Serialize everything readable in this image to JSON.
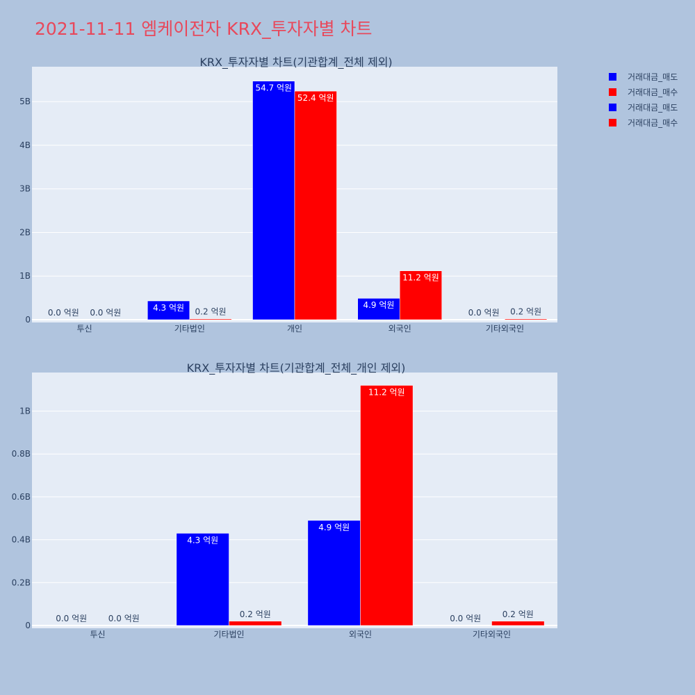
{
  "title": "2021-11-11 엠케이전자 KRX_투자자별 차트",
  "chart_data": [
    {
      "type": "bar",
      "title": "KRX_투자자별 차트(기관합계_전체 제외)",
      "categories": [
        "투신",
        "기타법인",
        "개인",
        "외국인",
        "기타외국인"
      ],
      "series": [
        {
          "name": "거래대금_매도",
          "color": "#0000ff",
          "values": [
            0,
            430000000,
            5470000000,
            490000000,
            0
          ],
          "labels": [
            "0.0 억원",
            "4.3 억원",
            "54.7 억원",
            "4.9 억원",
            "0.0 억원"
          ]
        },
        {
          "name": "거래대금_매수",
          "color": "#ff0000",
          "values": [
            0,
            20000000,
            5240000000,
            1120000000,
            20000000
          ],
          "labels": [
            "0.0 억원",
            "0.2 억원",
            "52.4 억원",
            "11.2 억원",
            "0.2 억원"
          ]
        }
      ],
      "ylim": [
        0,
        5800000000
      ],
      "yticks": [
        0,
        1000000000,
        2000000000,
        3000000000,
        4000000000,
        5000000000
      ],
      "yticklabels": [
        "0",
        "1B",
        "2B",
        "3B",
        "4B",
        "5B"
      ],
      "grid": true
    },
    {
      "type": "bar",
      "title": "KRX_투자자별 차트(기관합계_전체_개인 제외)",
      "categories": [
        "투신",
        "기타법인",
        "외국인",
        "기타외국인"
      ],
      "series": [
        {
          "name": "거래대금_매도",
          "color": "#0000ff",
          "values": [
            0,
            430000000,
            490000000,
            0
          ],
          "labels": [
            "0.0 억원",
            "4.3 억원",
            "4.9 억원",
            "0.0 억원"
          ]
        },
        {
          "name": "거래대금_매수",
          "color": "#ff0000",
          "values": [
            0,
            20000000,
            1120000000,
            20000000
          ],
          "labels": [
            "0.0 억원",
            "0.2 억원",
            "11.2 억원",
            "0.2 억원"
          ]
        }
      ],
      "ylim": [
        0,
        1180000000
      ],
      "yticks": [
        0,
        200000000,
        400000000,
        600000000,
        800000000,
        1000000000
      ],
      "yticklabels": [
        "0",
        "0.2B",
        "0.4B",
        "0.6B",
        "0.8B",
        "1B"
      ],
      "grid": true
    }
  ],
  "legend": [
    {
      "label": "거래대금_매도",
      "color": "#0000ff"
    },
    {
      "label": "거래대금_매수",
      "color": "#ff0000"
    },
    {
      "label": "거래대금_매도",
      "color": "#0000ff"
    },
    {
      "label": "거래대금_매수",
      "color": "#ff0000"
    }
  ]
}
